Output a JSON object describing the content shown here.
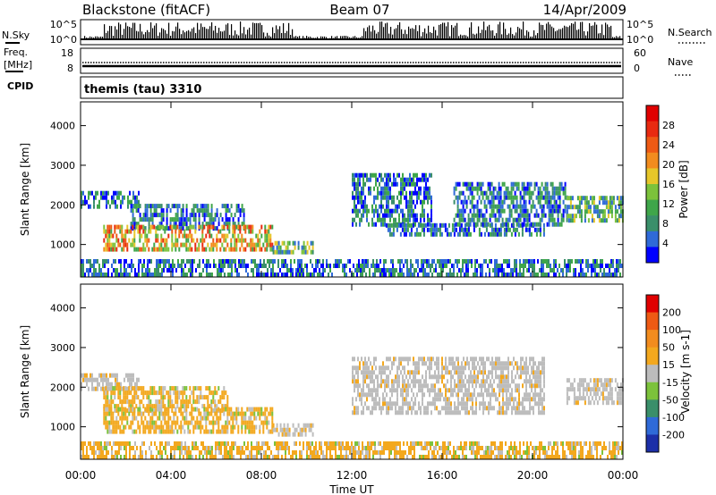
{
  "header": {
    "station": "Blackstone (fitACF)",
    "beam": "Beam 07",
    "date": "14/Apr/2009"
  },
  "strips": {
    "nsky_label": "N.Sky",
    "nsky_ticks": [
      "10^5",
      "10^0"
    ],
    "nsearch_label": "N.Search",
    "nsearch_ticks": [
      "10^5",
      "10^0"
    ],
    "freq_label_1": "Freq.",
    "freq_label_2": "[MHz]",
    "freq_ticks": [
      "18",
      "8"
    ],
    "nave_label": "Nave",
    "nave_ticks": [
      "60",
      "0"
    ],
    "cpid_label": "CPID",
    "cpid_value": "themis (tau) 3310"
  },
  "chart_data": [
    {
      "type": "heatmap",
      "quantity": "power",
      "ylabel": "Slant Range [km]",
      "ylim": [
        180,
        4600
      ],
      "yticks": [
        "4000",
        "3000",
        "2000",
        "1000"
      ],
      "xlim": [
        "00:00",
        "24:00"
      ],
      "colorbar_label": "Power [dB]",
      "colorbar_ticks": [
        "28",
        "24",
        "20",
        "16",
        "12",
        "8",
        "4"
      ],
      "colorscale": [
        "#0000ff",
        "#2f6ad8",
        "#3a8f6a",
        "#3fa64a",
        "#7cc23b",
        "#e6c62a",
        "#f28c1e",
        "#ee5a14",
        "#e82a10",
        "#e00000"
      ],
      "regions": [
        {
          "t0": 0.0,
          "t1": 2.6,
          "r0": 1900,
          "r1": 2350,
          "level": "low"
        },
        {
          "t0": 2.2,
          "t1": 7.2,
          "r0": 1350,
          "r1": 1950,
          "level": "low"
        },
        {
          "t0": 1.0,
          "t1": 8.5,
          "r0": 820,
          "r1": 1420,
          "level": "high"
        },
        {
          "t0": 8.5,
          "t1": 10.3,
          "r0": 750,
          "r1": 1000,
          "level": "mid"
        },
        {
          "t0": 12.0,
          "t1": 15.5,
          "r0": 1450,
          "r1": 2700,
          "level": "low"
        },
        {
          "t0": 13.5,
          "t1": 20.5,
          "r0": 1200,
          "r1": 1500,
          "level": "low"
        },
        {
          "t0": 16.5,
          "t1": 21.5,
          "r0": 1450,
          "r1": 2550,
          "level": "low"
        },
        {
          "t0": 21.5,
          "t1": 24.0,
          "r0": 1550,
          "r1": 2150,
          "level": "mid"
        },
        {
          "t0": 0.0,
          "t1": 24.0,
          "r0": 180,
          "r1": 600,
          "level": "low"
        }
      ]
    },
    {
      "type": "heatmap",
      "quantity": "velocity",
      "ylabel": "Slant Range [km]",
      "ylim": [
        180,
        4600
      ],
      "yticks": [
        "4000",
        "3000",
        "2000",
        "1000"
      ],
      "xlabel": "Time UT",
      "xticks": [
        "00:00",
        "04:00",
        "08:00",
        "12:00",
        "16:00",
        "20:00",
        "00:00"
      ],
      "colorbar_label": "Velocity [m s-1]",
      "colorbar_ticks": [
        "200",
        "100",
        "50",
        "15",
        "-15",
        "-50",
        "-100",
        "-200"
      ],
      "colorscale": [
        "#1c2fa8",
        "#2f6ad8",
        "#3a8f6a",
        "#7cc23b",
        "#bcbcbc",
        "#f3a81e",
        "#f28c1e",
        "#ee5a14",
        "#e00000"
      ],
      "regions": [
        {
          "t0": 0.0,
          "t1": 2.6,
          "r0": 1900,
          "r1": 2350,
          "color": "gray"
        },
        {
          "t0": 1.0,
          "t1": 6.5,
          "r0": 1350,
          "r1": 1950,
          "color": "orange"
        },
        {
          "t0": 1.0,
          "t1": 8.5,
          "r0": 820,
          "r1": 1420,
          "color": "orange"
        },
        {
          "t0": 8.5,
          "t1": 10.3,
          "r0": 750,
          "r1": 1000,
          "color": "gray"
        },
        {
          "t0": 12.0,
          "t1": 20.5,
          "r0": 1300,
          "r1": 2700,
          "color": "gray"
        },
        {
          "t0": 21.5,
          "t1": 24.0,
          "r0": 1550,
          "r1": 2150,
          "color": "gray"
        },
        {
          "t0": 0.0,
          "t1": 24.0,
          "r0": 180,
          "r1": 600,
          "color": "orange"
        }
      ]
    }
  ]
}
